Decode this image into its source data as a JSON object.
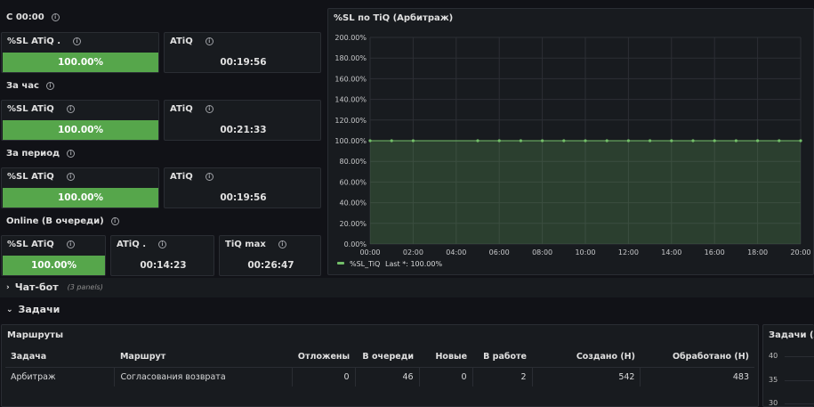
{
  "rows": {
    "since_midnight": "С 00:00",
    "per_hour": "За час",
    "per_period": "За период",
    "online": "Online (В очереди)"
  },
  "stats": {
    "since_midnight": {
      "sl_title": "%SL ATiQ .",
      "sl_value": "100.00%",
      "sl_fill": 1.0,
      "atiq_title": "ATiQ",
      "atiq_value": "00:19:56"
    },
    "per_hour": {
      "sl_title": "%SL ATiQ",
      "sl_value": "100.00%",
      "sl_fill": 1.0,
      "atiq_title": "ATiQ",
      "atiq_value": "00:21:33"
    },
    "per_period": {
      "sl_title": "%SL ATiQ",
      "sl_value": "100.00%",
      "sl_fill": 1.0,
      "atiq_title": "ATiQ",
      "atiq_value": "00:19:56"
    },
    "online": {
      "sl_title": "%SL ATiQ",
      "sl_value": "100.00%",
      "sl_fill": 1.0,
      "atiq_title": "ATiQ .",
      "atiq_value": "00:14:23",
      "tiq_title": "TiQ max",
      "tiq_value": "00:26:47"
    }
  },
  "graph": {
    "title": "%SL по TiQ (Арбитраж)",
    "legend_label": "%SL_TiQ",
    "legend_last": "Last *: 100.00%",
    "color": "#73bf69"
  },
  "chart_data": {
    "type": "area",
    "title": "%SL по TiQ (Арбитраж)",
    "x_ticks": [
      "00:00",
      "02:00",
      "04:00",
      "06:00",
      "08:00",
      "10:00",
      "12:00",
      "14:00",
      "16:00",
      "18:00",
      "20:00"
    ],
    "y_ticks": [
      "0.00%",
      "20.00%",
      "40.00%",
      "60.00%",
      "80.00%",
      "100.00%",
      "120.00%",
      "140.00%",
      "160.00%",
      "180.00%",
      "200.00%"
    ],
    "ylim": [
      0,
      200
    ],
    "xlim_hours": [
      0,
      20
    ],
    "grid": true,
    "legend": "bottom-left",
    "series": [
      {
        "name": "%SL_TiQ",
        "x_hours": [
          0,
          1,
          2,
          5,
          6,
          7,
          8,
          9,
          10,
          11,
          12,
          13,
          14,
          15,
          16,
          17,
          18,
          19,
          20
        ],
        "values": [
          100,
          100,
          100,
          100,
          100,
          100,
          100,
          100,
          100,
          100,
          100,
          100,
          100,
          100,
          100,
          100,
          100,
          100,
          100
        ]
      }
    ]
  },
  "sections": {
    "chatbot_label": "Чат-бот",
    "chatbot_count": "(3 panels)",
    "tasks_label": "Задачи"
  },
  "routes_table": {
    "title": "Маршруты",
    "headers": [
      "Задача",
      "Маршрут",
      "Отложены",
      "В очереди",
      "Новые",
      "В работе",
      "Создано (Н)",
      "Обработано (Н)"
    ],
    "rows": [
      [
        "Арбитраж",
        "Согласования возврата",
        "0",
        "46",
        "0",
        "2",
        "542",
        "483"
      ]
    ]
  },
  "side_panel": {
    "title": "Задачи (Ар",
    "y_ticks": [
      "40",
      "35",
      "30"
    ]
  }
}
